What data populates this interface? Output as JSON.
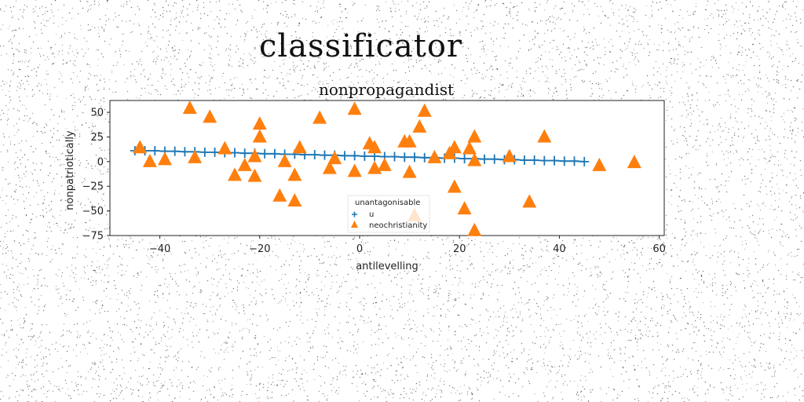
{
  "figure": {
    "suptitle": "classificator"
  },
  "chart_data": {
    "type": "scatter",
    "title": "nonpropagandist",
    "xlabel": "antilevelling",
    "ylabel": "nonpatriotically",
    "xlim": [
      -50,
      61
    ],
    "ylim": [
      -75,
      62
    ],
    "xticks": [
      -40,
      -20,
      0,
      20,
      40,
      60
    ],
    "yticks": [
      50,
      25,
      0,
      -25,
      -50,
      -75
    ],
    "grid": false,
    "legend": {
      "title": "unantagonisable",
      "placement": "lower center",
      "entries": [
        "u",
        "neochristianity"
      ]
    },
    "series": [
      {
        "name": "u",
        "marker": "plus",
        "color": "#1f77b4",
        "connected": true,
        "x": [
          -45,
          -43,
          -41,
          -39,
          -37,
          -35,
          -33,
          -31,
          -29,
          -27,
          -25,
          -23,
          -21,
          -19,
          -17,
          -15,
          -13,
          -11,
          -9,
          -7,
          -5,
          -3,
          -1,
          1,
          3,
          5,
          7,
          9,
          11,
          13,
          15,
          17,
          19,
          21,
          23,
          25,
          27,
          29,
          31,
          33,
          35,
          37,
          39,
          41,
          43,
          45
        ],
        "y": [
          11,
          11,
          11,
          10.5,
          10.5,
          10,
          10,
          9.5,
          9.5,
          9,
          9,
          8.5,
          8.5,
          8,
          8,
          7.5,
          7.5,
          7,
          7,
          6.5,
          6.5,
          6,
          6,
          5.5,
          5.5,
          5,
          5,
          4.5,
          4.5,
          4,
          4,
          3.5,
          3.5,
          3,
          3,
          2.5,
          2.5,
          2,
          2,
          1.5,
          1.5,
          1,
          1,
          0.5,
          0.5,
          0
        ]
      },
      {
        "name": "neochristianity",
        "marker": "triangle",
        "color": "#ff7f0e",
        "connected": false,
        "x": [
          -44,
          -42,
          -39,
          -34,
          -33,
          -30,
          -27,
          -25,
          -23,
          -21,
          -21,
          -20,
          -20,
          -16,
          -15,
          -13,
          -13,
          -12,
          -8,
          -6,
          -5,
          -1,
          -1,
          2,
          3,
          3,
          5,
          9,
          10,
          10,
          11,
          12,
          13,
          15,
          18,
          19,
          19,
          21,
          22,
          23,
          23,
          23,
          30,
          34,
          37,
          48,
          55
        ],
        "y": [
          14,
          0,
          2,
          54,
          4,
          45,
          13,
          -14,
          -4,
          -15,
          5,
          38,
          25,
          -35,
          0,
          -14,
          -40,
          14,
          44,
          -7,
          3,
          -10,
          53,
          18,
          14,
          -7,
          -4,
          20,
          20,
          -11,
          -55,
          35,
          51,
          4,
          8,
          -26,
          14,
          -48,
          13,
          1,
          -70,
          25,
          5,
          -41,
          25,
          -4,
          -1
        ]
      }
    ]
  }
}
